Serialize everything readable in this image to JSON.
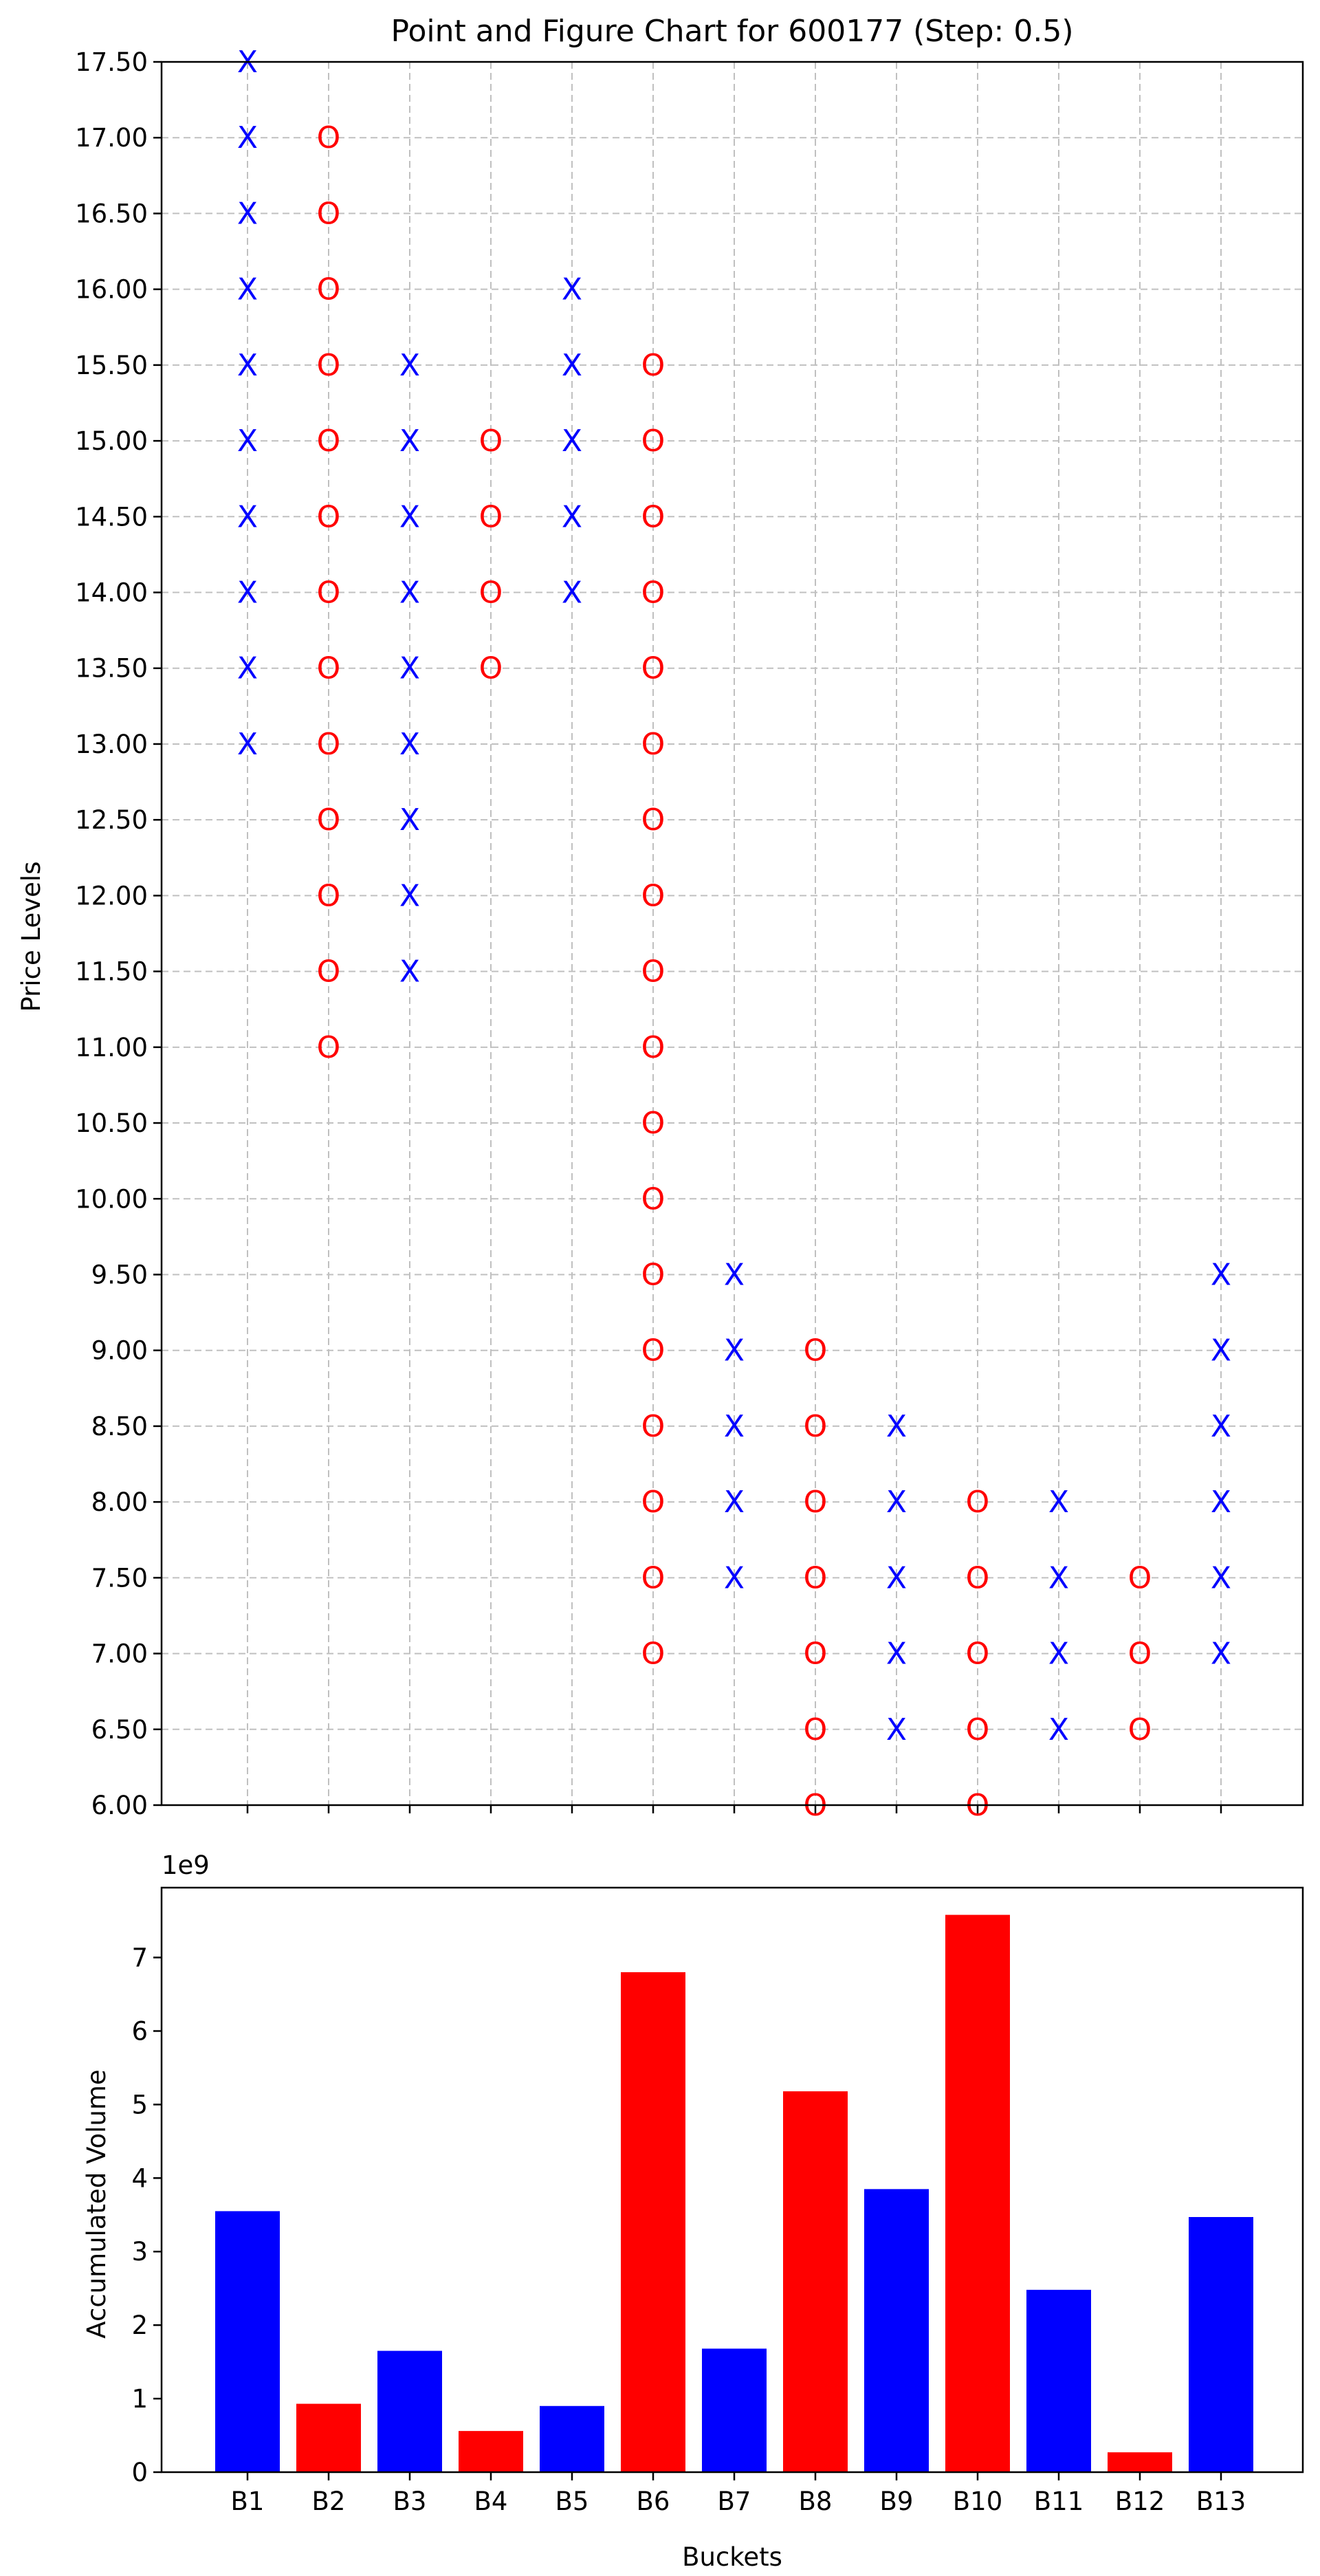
{
  "chart_data": [
    {
      "type": "point_and_figure",
      "title": "Point and Figure Chart for 600177 (Step: 0.5)",
      "ylabel": "Price Levels",
      "xlabel": "",
      "ylim": [
        6.0,
        17.5
      ],
      "grid": true,
      "y_ticks": [
        "6.00",
        "6.50",
        "7.00",
        "7.50",
        "8.00",
        "8.50",
        "9.00",
        "9.50",
        "10.00",
        "10.50",
        "11.00",
        "11.50",
        "12.00",
        "12.50",
        "13.00",
        "13.50",
        "14.00",
        "14.50",
        "15.00",
        "15.50",
        "16.00",
        "16.50",
        "17.00",
        "17.50"
      ],
      "columns": [
        {
          "symbol": "X",
          "prices": [
            13.0,
            13.5,
            14.0,
            14.5,
            15.0,
            15.5,
            16.0,
            16.5,
            17.0,
            17.5
          ]
        },
        {
          "symbol": "O",
          "prices": [
            11.0,
            11.5,
            12.0,
            12.5,
            13.0,
            13.5,
            14.0,
            14.5,
            15.0,
            15.5,
            16.0,
            16.5,
            17.0
          ]
        },
        {
          "symbol": "X",
          "prices": [
            11.5,
            12.0,
            12.5,
            13.0,
            13.5,
            14.0,
            14.5,
            15.0,
            15.5
          ]
        },
        {
          "symbol": "O",
          "prices": [
            13.5,
            14.0,
            14.5,
            15.0
          ]
        },
        {
          "symbol": "X",
          "prices": [
            14.0,
            14.5,
            15.0,
            15.5,
            16.0
          ]
        },
        {
          "symbol": "O",
          "prices": [
            7.0,
            7.5,
            8.0,
            8.5,
            9.0,
            9.5,
            10.0,
            10.5,
            11.0,
            11.5,
            12.0,
            12.5,
            13.0,
            13.5,
            14.0,
            14.5,
            15.0,
            15.5
          ]
        },
        {
          "symbol": "X",
          "prices": [
            7.5,
            8.0,
            8.5,
            9.0,
            9.5
          ]
        },
        {
          "symbol": "O",
          "prices": [
            6.0,
            6.5,
            7.0,
            7.5,
            8.0,
            8.5,
            9.0
          ]
        },
        {
          "symbol": "X",
          "prices": [
            6.5,
            7.0,
            7.5,
            8.0,
            8.5
          ]
        },
        {
          "symbol": "O",
          "prices": [
            6.0,
            6.5,
            7.0,
            7.5,
            8.0
          ]
        },
        {
          "symbol": "X",
          "prices": [
            6.5,
            7.0,
            7.5,
            8.0
          ]
        },
        {
          "symbol": "O",
          "prices": [
            6.5,
            7.0,
            7.5
          ]
        },
        {
          "symbol": "X",
          "prices": [
            7.0,
            7.5,
            8.0,
            8.5,
            9.0,
            9.5
          ]
        }
      ],
      "colors": {
        "X": "#0000ff",
        "O": "#ff0000"
      }
    },
    {
      "type": "bar",
      "xlabel": "Buckets",
      "ylabel": "Accumulated Volume",
      "scale_label": "1e9",
      "categories": [
        "B1",
        "B2",
        "B3",
        "B4",
        "B5",
        "B6",
        "B7",
        "B8",
        "B9",
        "B10",
        "B11",
        "B12",
        "B13"
      ],
      "values": [
        3.55,
        0.93,
        1.65,
        0.56,
        0.9,
        6.8,
        1.68,
        5.18,
        3.85,
        7.58,
        2.48,
        0.27,
        3.47
      ],
      "bar_colors": [
        "#0000ff",
        "#ff0000",
        "#0000ff",
        "#ff0000",
        "#0000ff",
        "#ff0000",
        "#0000ff",
        "#ff0000",
        "#0000ff",
        "#ff0000",
        "#0000ff",
        "#ff0000",
        "#0000ff"
      ],
      "ylim": [
        0,
        7.95
      ],
      "y_ticks": [
        "0",
        "1",
        "2",
        "3",
        "4",
        "5",
        "6",
        "7"
      ],
      "grid": false
    }
  ]
}
